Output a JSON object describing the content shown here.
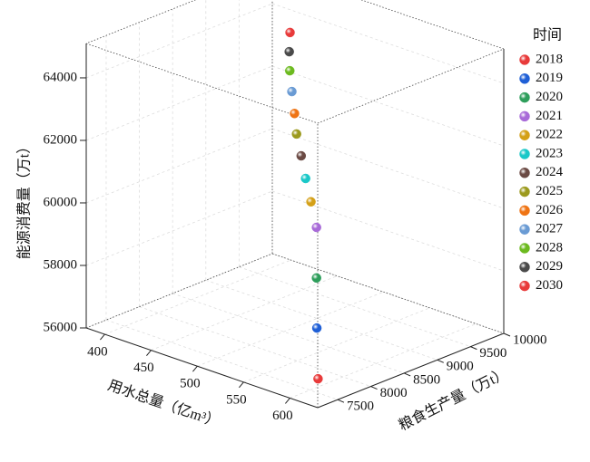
{
  "chart_data": {
    "type": "scatter3d",
    "xlabel": "用水总量（亿m³）",
    "ylabel": "粮食生产量（万t）",
    "zlabel": "能源消费量（万t）",
    "legend_title": "时间",
    "xlim": [
      380,
      630
    ],
    "ylim": [
      7200,
      10000
    ],
    "zlim": [
      56000,
      65100
    ],
    "xticks": [
      400,
      450,
      500,
      550,
      600
    ],
    "yticks": [
      7500,
      8000,
      8500,
      9000,
      9500,
      10000
    ],
    "zticks": [
      56000,
      58000,
      60000,
      62000,
      64000
    ],
    "series": [
      {
        "name": "2018",
        "color": "#e83a3a",
        "x": [
          611
        ],
        "y": [
          7470
        ],
        "values": [
          56500
        ]
      },
      {
        "name": "2019",
        "color": "#1f5fd6",
        "x": [
          567
        ],
        "y": [
          8065
        ],
        "values": [
          57170
        ]
      },
      {
        "name": "2020",
        "color": "#2e9e5b",
        "x": [
          524
        ],
        "y": [
          8659
        ],
        "values": [
          57830
        ]
      },
      {
        "name": "2021",
        "color": "#a86ad8",
        "x": [
          481
        ],
        "y": [
          9258
        ],
        "values": [
          58500
        ]
      },
      {
        "name": "2022",
        "color": "#d4a017",
        "x": [
          471
        ],
        "y": [
          9314
        ],
        "values": [
          59170
        ]
      },
      {
        "name": "2023",
        "color": "#1ac8c8",
        "x": [
          464
        ],
        "y": [
          9331
        ],
        "values": [
          59830
        ]
      },
      {
        "name": "2024",
        "color": "#6b4a44",
        "x": [
          459
        ],
        "y": [
          9334
        ],
        "values": [
          60500
        ]
      },
      {
        "name": "2025",
        "color": "#9c9a1e",
        "x": [
          455
        ],
        "y": [
          9320
        ],
        "values": [
          61170
        ]
      },
      {
        "name": "2026",
        "color": "#ef7414",
        "x": [
          454
        ],
        "y": [
          9303
        ],
        "values": [
          61830
        ]
      },
      {
        "name": "2027",
        "color": "#6a9bd4",
        "x": [
          451
        ],
        "y": [
          9305
        ],
        "values": [
          62500
        ]
      },
      {
        "name": "2028",
        "color": "#6cba1f",
        "x": [
          450
        ],
        "y": [
          9288
        ],
        "values": [
          63170
        ]
      },
      {
        "name": "2029",
        "color": "#4a4a4a",
        "x": [
          452
        ],
        "y": [
          9252
        ],
        "values": [
          63830
        ]
      },
      {
        "name": "2030",
        "color": "#e83a3a",
        "x": [
          455
        ],
        "y": [
          9222
        ],
        "values": [
          64500
        ]
      }
    ]
  }
}
